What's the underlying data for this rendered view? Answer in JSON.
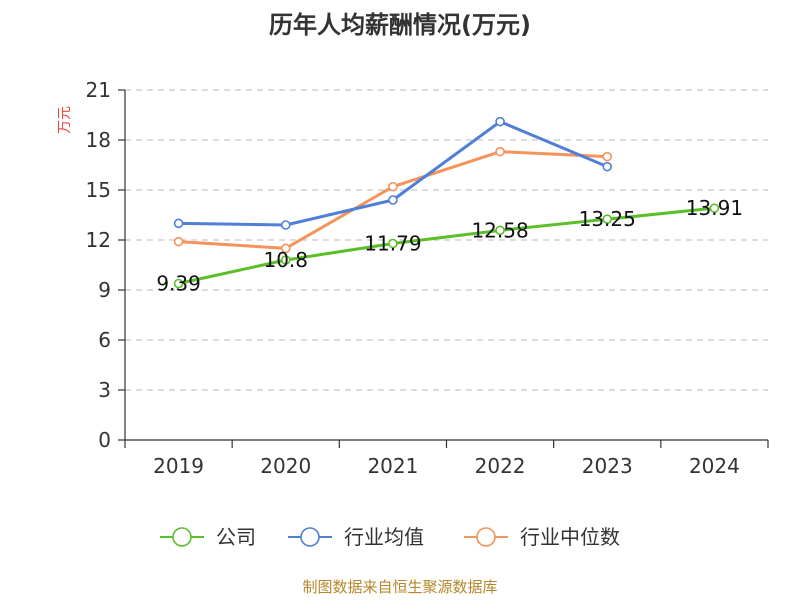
{
  "chart_data": {
    "type": "line",
    "title": "历年人均薪酬情况(万元)",
    "ylabel": "万元",
    "xlabel": "",
    "categories": [
      "2019",
      "2020",
      "2021",
      "2022",
      "2023",
      "2024"
    ],
    "ylim": [
      0,
      21
    ],
    "yticks": [
      0,
      3,
      6,
      9,
      12,
      15,
      18,
      21
    ],
    "grid": true,
    "legend_position": "bottom",
    "series": [
      {
        "name": "公司",
        "color": "#5cbf2a",
        "values": [
          9.39,
          10.8,
          11.79,
          12.58,
          13.25,
          13.91
        ],
        "labels": [
          "9.39",
          "10.8",
          "11.79",
          "12.58",
          "13.25",
          "13.91"
        ]
      },
      {
        "name": "行业均值",
        "color": "#4f7fd6",
        "values": [
          13.0,
          12.9,
          14.4,
          19.1,
          16.4,
          null
        ]
      },
      {
        "name": "行业中位数",
        "color": "#f4935a",
        "values": [
          11.9,
          11.5,
          15.2,
          17.3,
          17.0,
          null
        ]
      }
    ]
  },
  "footer": {
    "source": "制图数据来自恒生聚源数据库"
  }
}
